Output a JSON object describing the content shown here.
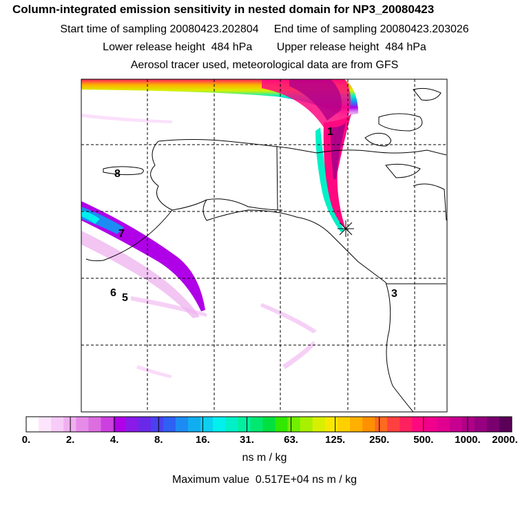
{
  "titles": {
    "main": "Column-integrated emission sensitivity in nested domain for NP3_20080423",
    "line1_start": "Start time of sampling 20080423.202804",
    "line1_end": "End time of sampling 20080423.203026",
    "line2_lower": "Lower release height  484 hPa",
    "line2_upper": "Upper release height  484 hPa",
    "line3": "Aerosol tracer used, meteorological data are from GFS"
  },
  "release_labels": [
    "1",
    "8",
    "7",
    "6",
    "5",
    "3"
  ],
  "colorbar": {
    "ticks": [
      "0.",
      "2.",
      "4.",
      "8.",
      "16.",
      "31.",
      "63.",
      "125.",
      "250.",
      "500.",
      "1000.",
      "2000."
    ],
    "colors": [
      "#ffffff",
      "#fde6fd",
      "#f8ccf8",
      "#f0b0f0",
      "#e68ce8",
      "#dc6ee0",
      "#cc40e0",
      "#b000e8",
      "#8a1ae8",
      "#6a28e8",
      "#4a40f0",
      "#2e60f4",
      "#1c8cf4",
      "#10aef0",
      "#0cd0f0",
      "#00f0ee",
      "#00f0c8",
      "#00f0a0",
      "#00e870",
      "#00e040",
      "#30e800",
      "#70f000",
      "#a8f000",
      "#d8f000",
      "#f8e800",
      "#ffd000",
      "#ffb000",
      "#ff9000",
      "#ff6a20",
      "#ff4040",
      "#ff2060",
      "#ff0880",
      "#f0008c",
      "#e00090",
      "#c80090",
      "#b00088",
      "#960080",
      "#7a0070",
      "#5a0058"
    ],
    "unit": "ns m / kg"
  },
  "maximum": "Maximum value  0.517E+04 ns m / kg",
  "colors": {
    "coast": "#000000",
    "grid": "#000000",
    "frame": "#000000"
  }
}
